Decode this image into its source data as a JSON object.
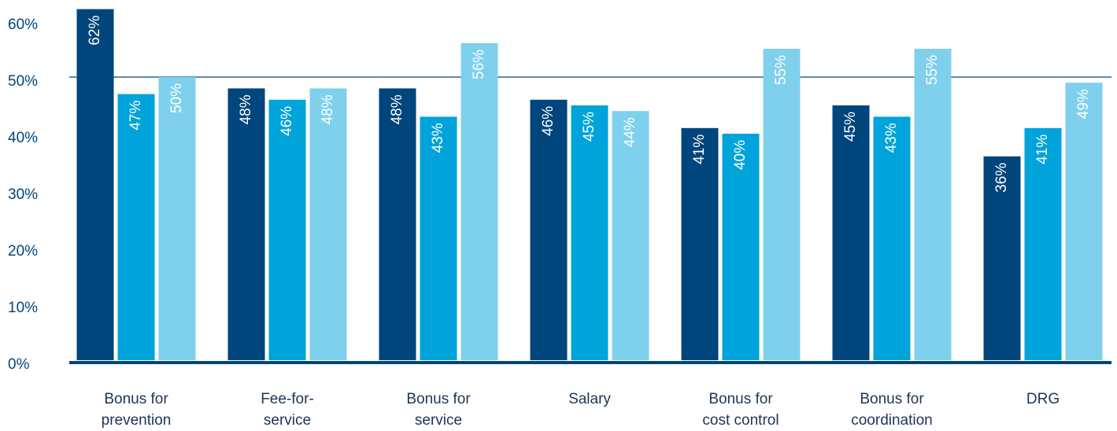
{
  "chart_data": {
    "type": "bar",
    "categories": [
      [
        "Bonus for",
        "prevention"
      ],
      [
        "Fee-for-",
        "service"
      ],
      [
        "Bonus for",
        "service"
      ],
      [
        "Salary"
      ],
      [
        "Bonus for",
        "cost control"
      ],
      [
        "Bonus for",
        "coordination"
      ],
      [
        "DRG"
      ]
    ],
    "series": [
      {
        "color": "#00457c",
        "values": [
          62,
          48,
          48,
          46,
          41,
          45,
          36
        ],
        "value_labels": [
          "62%",
          "48%",
          "48%",
          "46%",
          "41%",
          "45%",
          "36%"
        ]
      },
      {
        "color": "#00a3da",
        "values": [
          47,
          46,
          43,
          45,
          40,
          43,
          41
        ],
        "value_labels": [
          "47%",
          "46%",
          "43%",
          "45%",
          "40%",
          "43%",
          "41%"
        ]
      },
      {
        "color": "#7fd0ec",
        "values": [
          50,
          48,
          56,
          44,
          55,
          55,
          49
        ],
        "value_labels": [
          "50%",
          "48%",
          "56%",
          "44%",
          "55%",
          "55%",
          "49%"
        ]
      }
    ],
    "ylim": [
      0,
      60
    ],
    "yticks": [
      {
        "value": 0,
        "label": "0%"
      },
      {
        "value": 10,
        "label": "10%"
      },
      {
        "value": 20,
        "label": "20%"
      },
      {
        "value": 30,
        "label": "30%"
      },
      {
        "value": 40,
        "label": "40%"
      },
      {
        "value": 50,
        "label": "50%"
      },
      {
        "value": 60,
        "label": "60%"
      }
    ],
    "grid": false,
    "reference_line": 50
  }
}
